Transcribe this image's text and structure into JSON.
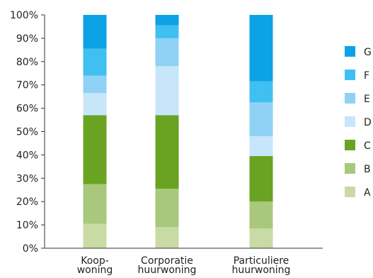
{
  "chart_data": {
    "type": "bar",
    "stacked": true,
    "title": "",
    "xlabel": "",
    "ylabel": "",
    "ylim": [
      0,
      100
    ],
    "y_ticks": [
      "0%",
      "10%",
      "20%",
      "30%",
      "40%",
      "50%",
      "60%",
      "70%",
      "80%",
      "90%",
      "100%"
    ],
    "categories": [
      [
        "Koop-",
        "woning"
      ],
      [
        "Corporatie",
        "huurwoning"
      ],
      [
        "Particuliere",
        "huurwoning"
      ]
    ],
    "series": [
      {
        "name": "A",
        "color": "#c9dba4",
        "values": [
          10.5,
          9,
          8.5
        ]
      },
      {
        "name": "B",
        "color": "#a9c87b",
        "values": [
          17,
          16.5,
          11.5
        ]
      },
      {
        "name": "C",
        "color": "#6aa322",
        "values": [
          29.5,
          31.5,
          19.5
        ]
      },
      {
        "name": "D",
        "color": "#c7e6fa",
        "values": [
          9.5,
          21,
          8.5
        ]
      },
      {
        "name": "E",
        "color": "#8fd2f5",
        "values": [
          7.5,
          12,
          14.5
        ]
      },
      {
        "name": "F",
        "color": "#40c0f0",
        "values": [
          11.5,
          5.5,
          9
        ]
      },
      {
        "name": "G",
        "color": "#0ba3e6",
        "values": [
          14.5,
          4.5,
          28.5
        ]
      }
    ],
    "legend_position": "right",
    "grid": false
  }
}
